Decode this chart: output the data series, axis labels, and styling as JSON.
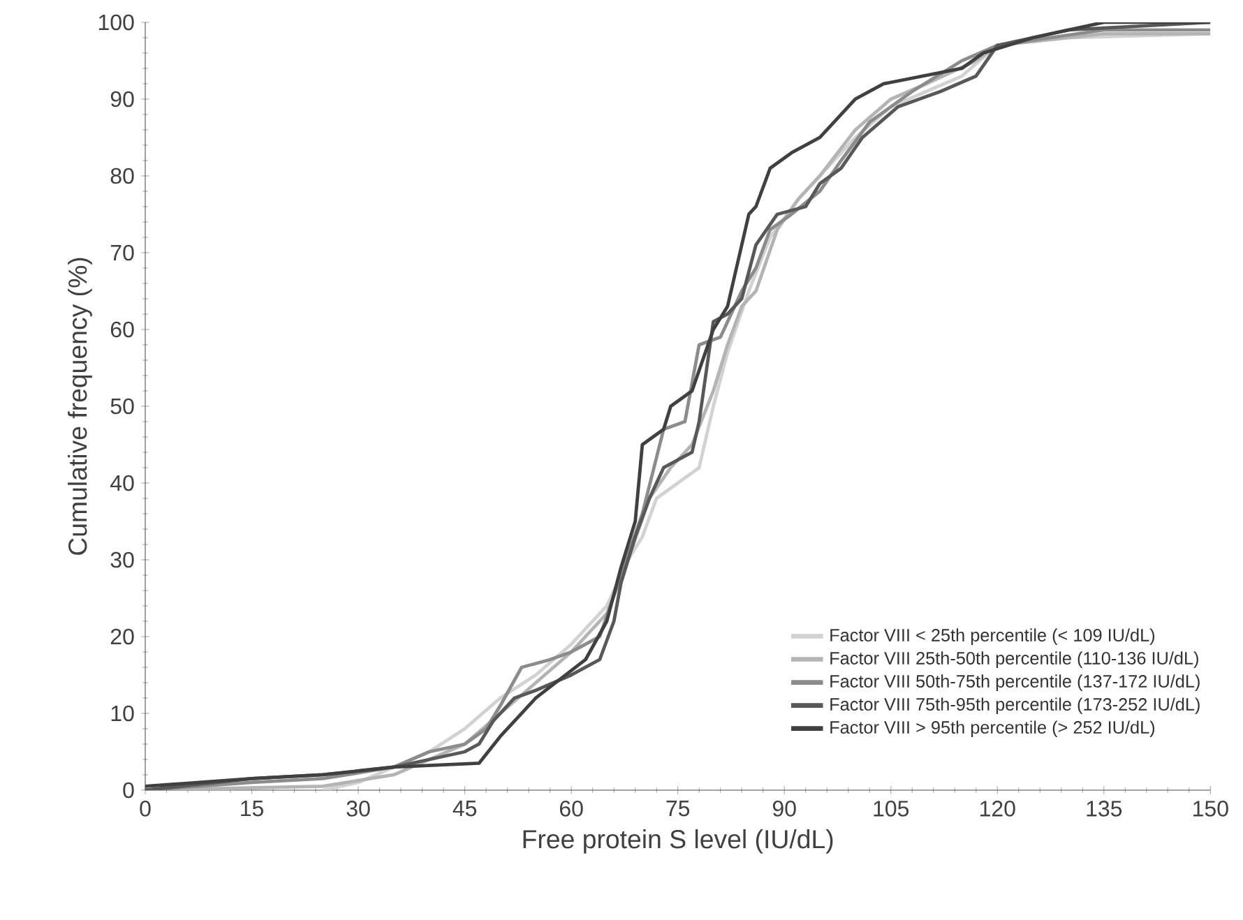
{
  "chart_data": {
    "type": "line",
    "xlabel": "Free protein S level (IU/dL)",
    "ylabel": "Cumulative frequency (%)",
    "xlim": [
      0,
      150
    ],
    "ylim": [
      0,
      100
    ],
    "xticks": [
      0,
      15,
      30,
      45,
      60,
      75,
      90,
      105,
      120,
      135,
      150
    ],
    "yticks": [
      0,
      10,
      20,
      30,
      40,
      50,
      60,
      70,
      80,
      90,
      100
    ],
    "legend": "bottom right",
    "grid": false,
    "marker": "none",
    "line_style": "solid",
    "series": [
      {
        "name": "Factor VIII < 25th percentile (< 109 IU/dL)",
        "color": "#d2d2d2",
        "x": [
          25,
          30,
          35,
          40,
          45,
          50,
          55,
          60,
          65,
          68,
          70,
          72,
          75,
          78,
          80,
          82,
          85,
          88,
          92,
          95,
          100,
          105,
          110,
          115,
          120,
          130,
          150
        ],
        "values": [
          0,
          1,
          3,
          5,
          8,
          12,
          15,
          19,
          24,
          30,
          33,
          38,
          40,
          42,
          50,
          57,
          65,
          72,
          77,
          80,
          85,
          89,
          91,
          93,
          97,
          98,
          98.5
        ]
      },
      {
        "name": "Factor VIII 25th-50th percentile (110-136 IU/dL)",
        "color": "#b4b4b4",
        "x": [
          0,
          25,
          35,
          45,
          50,
          55,
          60,
          65,
          68,
          71,
          74,
          77,
          80,
          82,
          84,
          86,
          89,
          92,
          95,
          100,
          105,
          110,
          117,
          120,
          135,
          150
        ],
        "values": [
          0,
          0.5,
          2,
          6,
          10,
          14,
          18,
          23,
          30,
          38,
          42,
          45,
          52,
          58,
          63,
          65,
          73,
          77,
          80,
          86,
          90,
          92,
          95,
          97,
          98.5,
          98.5
        ]
      },
      {
        "name": "Factor VIII 50th-75th percentile (137-172 IU/dL)",
        "color": "#8c8c8c",
        "x": [
          0,
          15,
          25,
          35,
          40,
          45,
          48,
          50,
          53,
          57,
          60,
          64,
          67,
          70,
          73,
          76,
          78,
          81,
          84,
          86,
          88,
          91,
          95,
          98,
          102,
          108,
          115,
          120,
          135,
          150
        ],
        "values": [
          0,
          1,
          1.5,
          3,
          5,
          6,
          8,
          11,
          16,
          17,
          18,
          20,
          28,
          36,
          47,
          48,
          58,
          59,
          65,
          68,
          73,
          75,
          78,
          82,
          87,
          91,
          95,
          97,
          99,
          99
        ]
      },
      {
        "name": "Factor VIII 75th-95th percentile (173-252 IU/dL)",
        "color": "#585858",
        "x": [
          0,
          10,
          15,
          25,
          35,
          40,
          45,
          47,
          49,
          52,
          55,
          60,
          64,
          66,
          67,
          69,
          71,
          73,
          77,
          78,
          80,
          82,
          84,
          86,
          89,
          93,
          95,
          98,
          101,
          106,
          112,
          117,
          120,
          130,
          150
        ],
        "values": [
          0,
          1,
          1.5,
          2,
          3,
          4,
          5,
          6,
          9,
          12,
          13,
          15,
          17,
          22,
          27,
          33,
          38,
          42,
          44,
          48,
          61,
          62,
          64,
          71,
          75,
          76,
          79,
          81,
          85,
          89,
          91,
          93,
          97,
          99,
          100
        ]
      },
      {
        "name": "Factor VIII > 95th percentile (> 252 IU/dL)",
        "color": "#404040",
        "x": [
          0,
          15,
          25,
          35,
          47,
          50,
          55,
          62,
          65,
          67,
          69,
          70,
          73,
          74,
          77,
          80,
          82,
          85,
          86,
          88,
          91,
          95,
          100,
          104,
          115,
          118,
          125,
          135,
          150
        ],
        "values": [
          0.5,
          1.5,
          2,
          3,
          3.5,
          7,
          12,
          17,
          22,
          29,
          35,
          45,
          47,
          50,
          52,
          60,
          63,
          75,
          76,
          81,
          83,
          85,
          90,
          92,
          94,
          96,
          98,
          100,
          100
        ]
      }
    ]
  }
}
